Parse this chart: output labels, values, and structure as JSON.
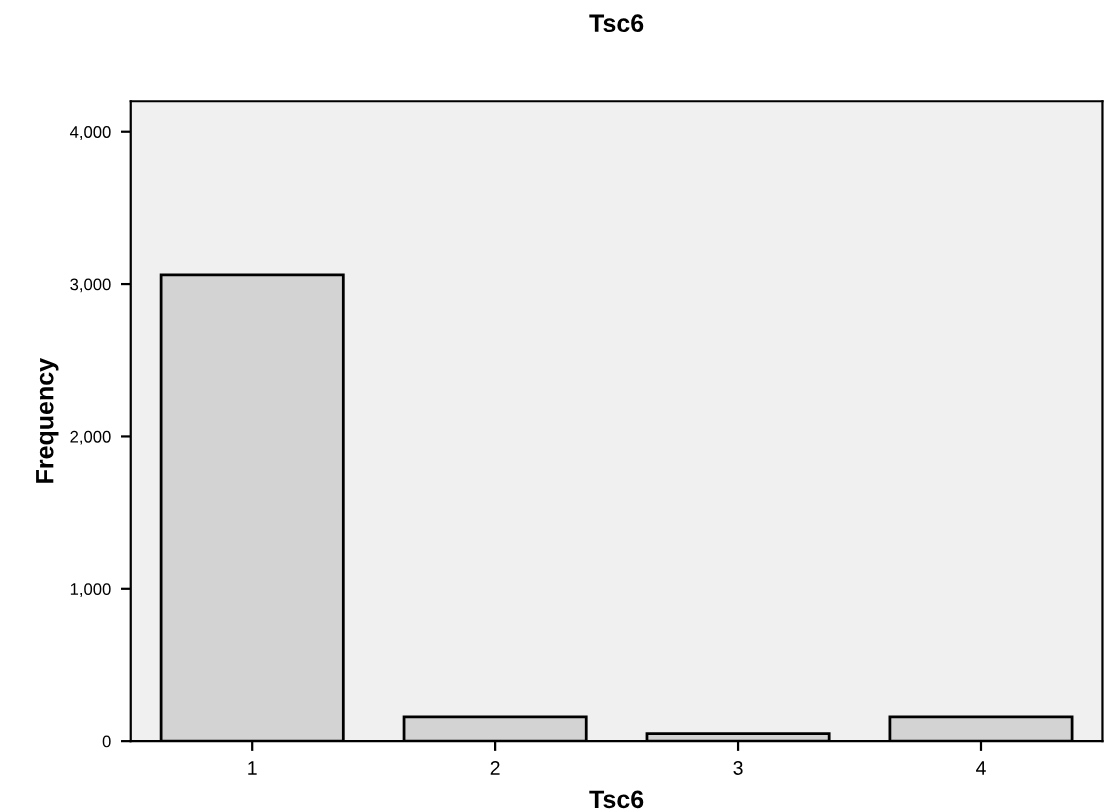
{
  "chart_data": {
    "type": "bar",
    "title": "Tsc6",
    "xlabel": "Tsc6",
    "ylabel": "Frequency",
    "categories": [
      "1",
      "2",
      "3",
      "4"
    ],
    "values": [
      3060,
      160,
      50,
      160
    ],
    "color": "#d3d3d3",
    "ylim": [
      0,
      4200
    ],
    "yticks": [
      {
        "value": 0,
        "label": "0"
      },
      {
        "value": 1000,
        "label": "1,000"
      },
      {
        "value": 2000,
        "label": "2,000"
      },
      {
        "value": 3000,
        "label": "3,000"
      },
      {
        "value": 4000,
        "label": "4,000"
      }
    ],
    "grid": false,
    "legend": false
  }
}
